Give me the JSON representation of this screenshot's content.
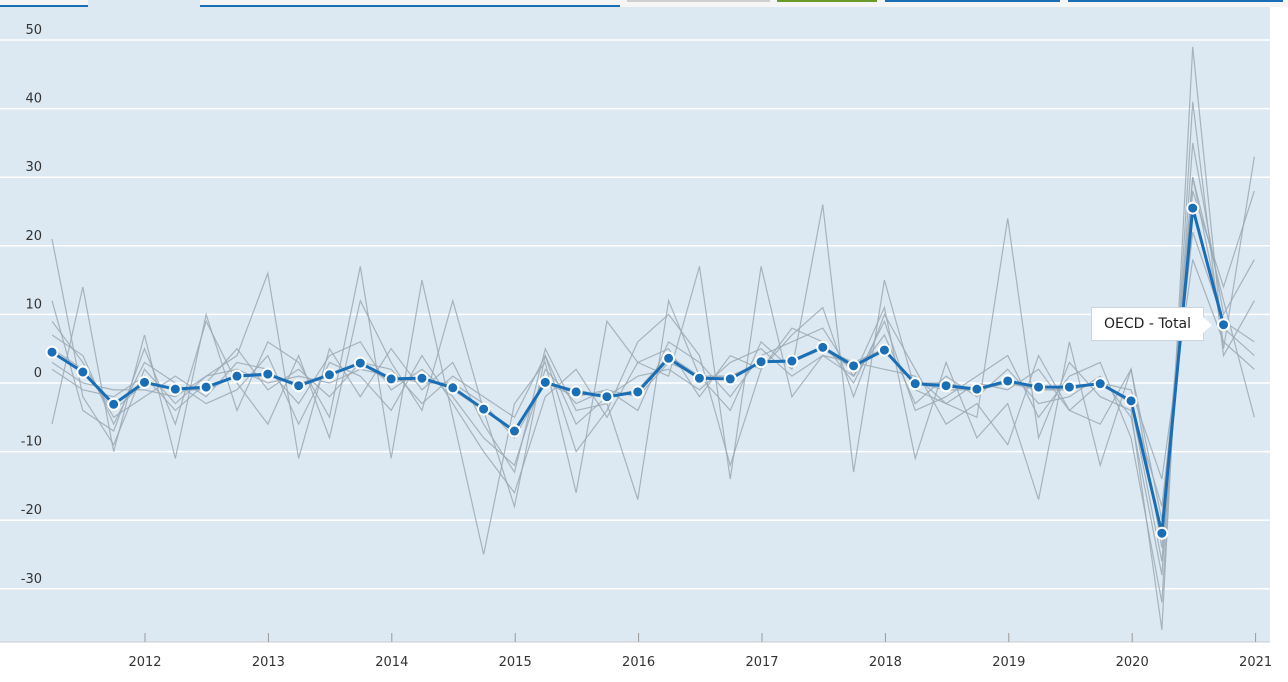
{
  "chart_data": {
    "type": "line",
    "title": "",
    "xlabel": "",
    "ylabel": "",
    "ylim": [
      -38,
      52
    ],
    "yticks": [
      50,
      40,
      30,
      20,
      10,
      0,
      -10,
      -20,
      -30
    ],
    "xticks": [
      "2012",
      "2013",
      "2014",
      "2015",
      "2016",
      "2017",
      "2018",
      "2019",
      "2020",
      "2021"
    ],
    "x_start": "2011-Q2",
    "grid": true,
    "highlight": {
      "name": "OECD - Total",
      "color": "#1a6eb5",
      "values": [
        4.5,
        1.6,
        -3.1,
        0.1,
        -0.9,
        -0.6,
        1.0,
        1.3,
        -0.4,
        1.2,
        2.9,
        0.6,
        0.7,
        -0.7,
        -3.8,
        -7.0,
        0.1,
        -1.3,
        -2.0,
        -1.3,
        3.6,
        0.7,
        0.6,
        3.1,
        3.2,
        5.2,
        2.5,
        4.8,
        -0.1,
        -0.4,
        -0.9,
        0.3,
        -0.6,
        -0.6,
        -0.1,
        -2.6,
        -21.9,
        25.5,
        8.5
      ]
    },
    "background_series_color": "#9aa9b4",
    "series": [
      {
        "values": [
          21,
          -2,
          -9,
          2,
          -3,
          1,
          4,
          16,
          -11,
          5,
          -2,
          5,
          -1,
          3,
          -6,
          -13,
          5,
          -4,
          -3,
          -17,
          12,
          1,
          -4,
          6,
          2,
          26,
          -13,
          15,
          -1,
          -3,
          -5,
          24,
          -8,
          3,
          -2,
          -4,
          -36,
          49,
          5,
          33
        ]
      },
      {
        "values": [
          -6,
          14,
          -10,
          7,
          -11,
          10,
          -4,
          6,
          3,
          -5,
          17,
          -11,
          15,
          -5,
          -25,
          -3,
          3,
          -16,
          9,
          3,
          1,
          17,
          -14,
          17,
          -2,
          4,
          1,
          11,
          -11,
          3,
          -8,
          -3,
          -17,
          6,
          -12,
          2,
          -20,
          30,
          12,
          -5
        ]
      },
      {
        "values": [
          9,
          3,
          -5,
          -2,
          1,
          -2,
          3,
          2,
          -3,
          4,
          6,
          -1,
          2,
          -2,
          -8,
          -12,
          2,
          -3,
          -1,
          -4,
          6,
          3,
          -2,
          4,
          6,
          8,
          1,
          7,
          -3,
          1,
          -2,
          2,
          -3,
          -2,
          1,
          -5,
          -28,
          35,
          10,
          18
        ]
      },
      {
        "values": [
          2,
          -1,
          -2,
          1,
          -4,
          0,
          5,
          -1,
          2,
          -2,
          3,
          2,
          -3,
          1,
          -2,
          -5,
          4,
          -6,
          -2,
          1,
          2,
          -1,
          3,
          5,
          1,
          4,
          3,
          2,
          1,
          -3,
          0,
          -1,
          2,
          -4,
          0,
          -1,
          -14,
          18,
          6,
          2
        ]
      },
      {
        "values": [
          7,
          4,
          -6,
          3,
          0,
          -3,
          -1,
          4,
          -6,
          3,
          1,
          -4,
          4,
          -3,
          -10,
          -16,
          -2,
          2,
          -5,
          3,
          5,
          -2,
          4,
          2,
          8,
          6,
          0,
          9,
          -4,
          -2,
          1,
          4,
          -5,
          1,
          3,
          -8,
          -32,
          41,
          4,
          12
        ]
      },
      {
        "values": [
          3,
          0,
          -1,
          -1,
          -2,
          1,
          2,
          0,
          1,
          0,
          2,
          1,
          0,
          0,
          -3,
          -8,
          0,
          -2,
          -1,
          -2,
          3,
          1,
          1,
          3,
          3,
          5,
          3,
          5,
          0,
          -1,
          -1,
          0,
          -1,
          -1,
          0,
          -3,
          -18,
          22,
          9,
          6
        ]
      },
      {
        "values": [
          12,
          -4,
          -7,
          5,
          -6,
          9,
          0,
          -6,
          4,
          -8,
          12,
          3,
          -4,
          12,
          -4,
          -18,
          4,
          -10,
          -4,
          6,
          10,
          4,
          -12,
          2,
          7,
          11,
          -2,
          10,
          2,
          -6,
          -3,
          -9,
          4,
          -4,
          -6,
          2,
          -24,
          28,
          14,
          28
        ]
      },
      {
        "values": [
          5,
          2,
          -4,
          0,
          -1,
          -1,
          1,
          1,
          0,
          1,
          3,
          0,
          1,
          -1,
          -4,
          -7,
          0,
          -1,
          -2,
          -1,
          4,
          1,
          1,
          3,
          3,
          5,
          2,
          5,
          0,
          0,
          -1,
          0,
          -1,
          -1,
          0,
          -3,
          -26,
          30,
          8,
          4
        ]
      }
    ]
  }
}
